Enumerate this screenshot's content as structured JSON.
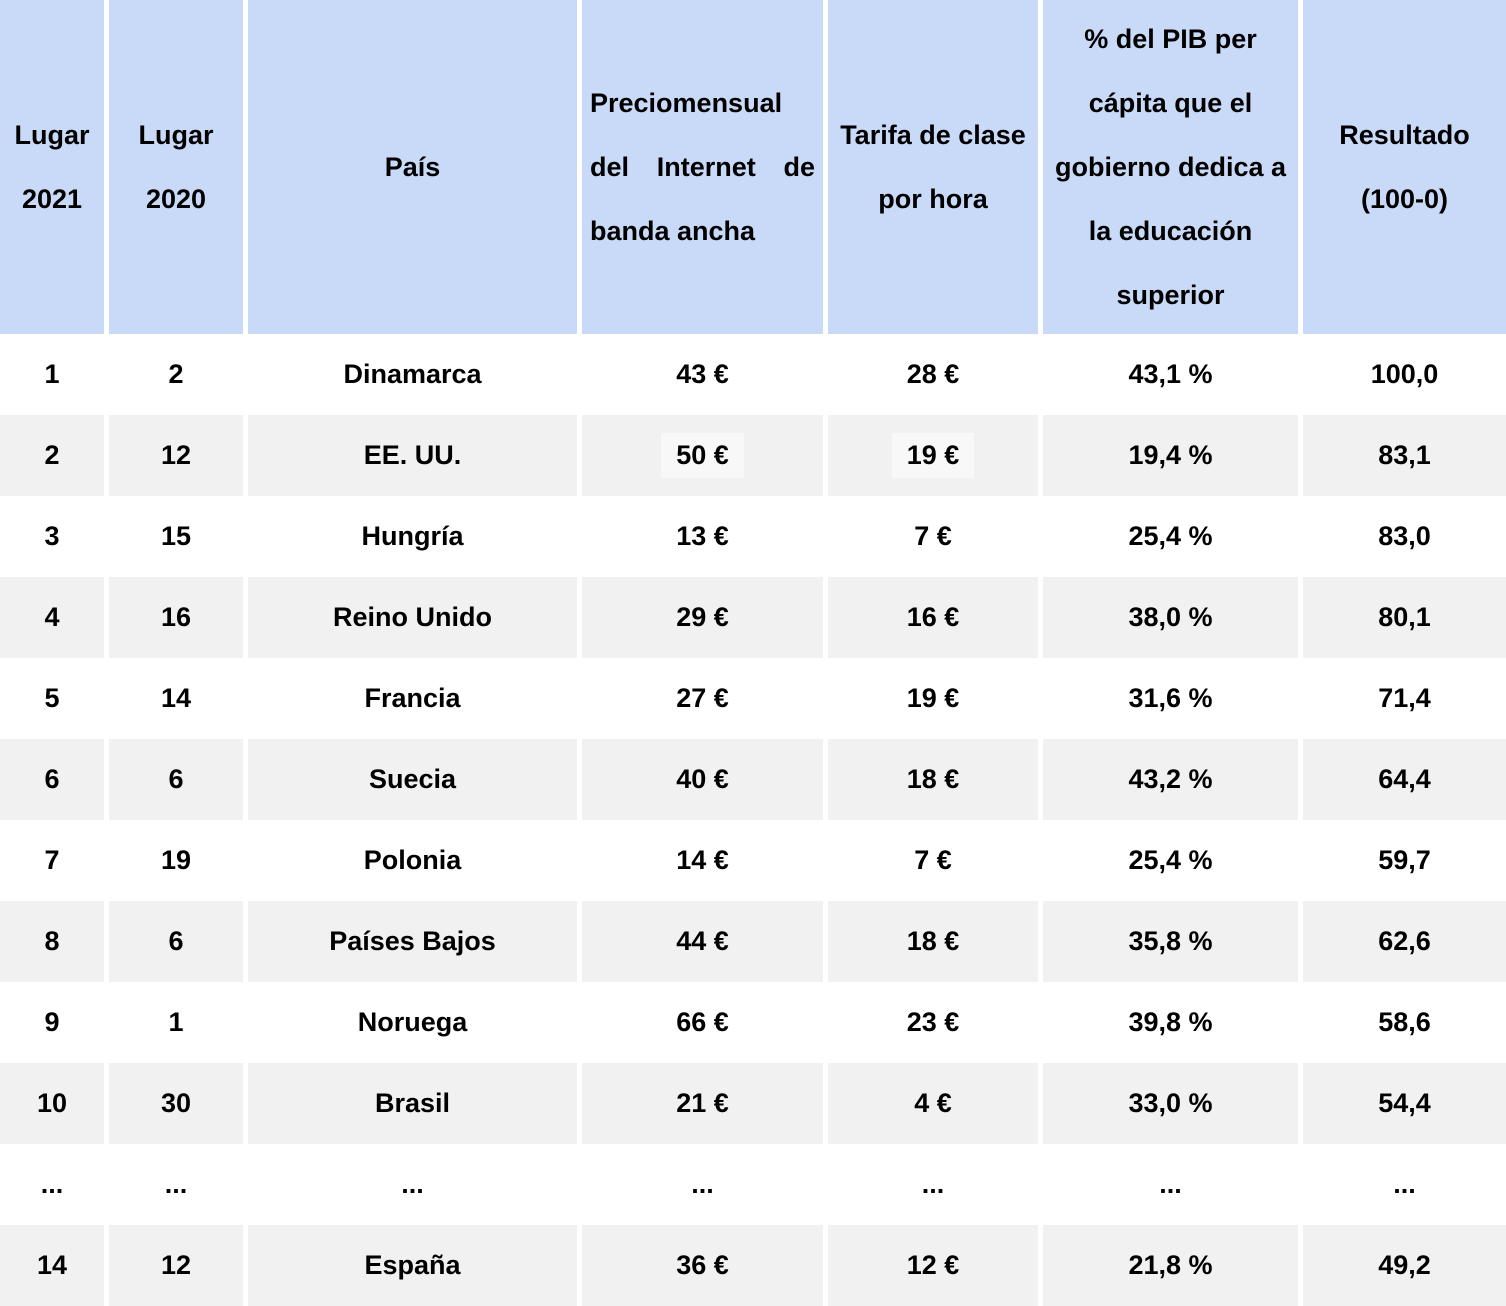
{
  "chart_data": {
    "type": "table",
    "columns": [
      "Lugar 2021",
      "Lugar 2020",
      "País",
      "Preciomensual del Internet de banda ancha",
      "Tarifa de clase por hora",
      "% del PIB per cápita que el gobierno dedica a la educación superior",
      "Resultado (100-0)"
    ],
    "rows": [
      [
        "1",
        "2",
        "Dinamarca",
        "43 €",
        "28 €",
        "43,1 %",
        "100,0"
      ],
      [
        "2",
        "12",
        "EE. UU.",
        "50 €",
        "19 €",
        "19,4 %",
        "83,1"
      ],
      [
        "3",
        "15",
        "Hungría",
        "13 €",
        "7 €",
        "25,4 %",
        "83,0"
      ],
      [
        "4",
        "16",
        "Reino Unido",
        "29 €",
        "16 €",
        "38,0 %",
        "80,1"
      ],
      [
        "5",
        "14",
        "Francia",
        "27 €",
        "19 €",
        "31,6 %",
        "71,4"
      ],
      [
        "6",
        "6",
        "Suecia",
        "40 €",
        "18 €",
        "43,2 %",
        "64,4"
      ],
      [
        "7",
        "19",
        "Polonia",
        "14 €",
        "7 €",
        "25,4 %",
        "59,7"
      ],
      [
        "8",
        "6",
        "Países Bajos",
        "44 €",
        "18 €",
        "35,8 %",
        "62,6"
      ],
      [
        "9",
        "1",
        "Noruega",
        "66 €",
        "23 €",
        "39,8 %",
        "58,6"
      ],
      [
        "10",
        "30",
        "Brasil",
        "21 €",
        "4 €",
        "33,0 %",
        "54,4"
      ],
      [
        "...",
        "...",
        "...",
        "...",
        "...",
        "...",
        "..."
      ],
      [
        "14",
        "12",
        "España",
        "36 €",
        "12 €",
        "21,8 %",
        "49,2"
      ]
    ]
  },
  "display": {
    "header": {
      "c1": "Lugar\n2021",
      "c2": "Lugar\n2020",
      "c3": "País",
      "c4_lines": [
        "Preciomensual",
        "del Internet de",
        "banda ancha"
      ],
      "c5": "Tarifa de clase\npor hora",
      "c6": "% del PIB per\ncápita que el\ngobierno dedica a\nla educación\nsuperior",
      "c7": "Resultado\n(100-0)"
    }
  },
  "colors": {
    "header_bg": "#c9daf8",
    "row_bg": "#ffffff",
    "row_alt_bg": "#f1f1f1",
    "text": "#000000",
    "separator": "#ffffff",
    "cell_highlight": "#f8f8f8"
  }
}
